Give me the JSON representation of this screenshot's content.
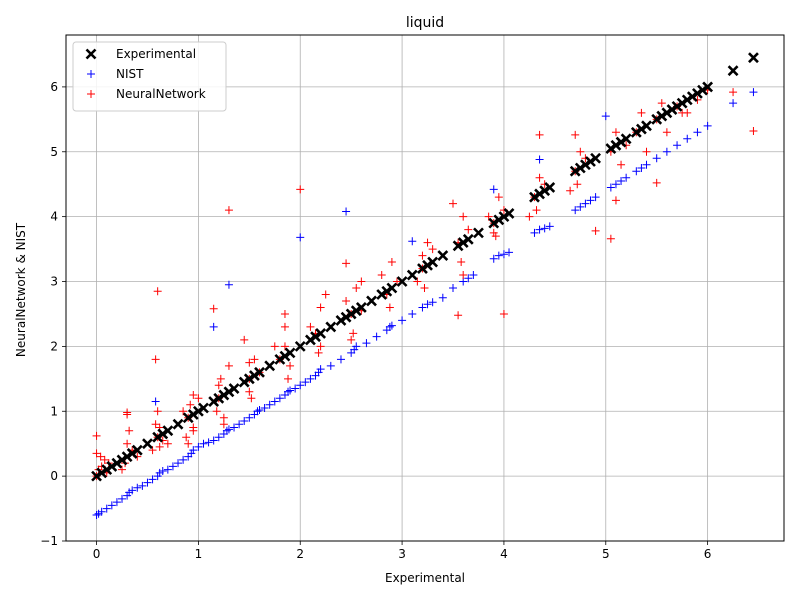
{
  "chart_data": {
    "type": "scatter",
    "title": "liquid",
    "xlabel": "Experimental",
    "ylabel": "NeuralNetwork & NIST",
    "xlim": [
      -0.3,
      6.75
    ],
    "ylim": [
      -1,
      6.8
    ],
    "xticks": [
      0,
      1,
      2,
      3,
      4,
      5,
      6
    ],
    "yticks": [
      -1,
      0,
      1,
      2,
      3,
      4,
      5,
      6
    ],
    "grid": true,
    "legend_position": "top-left",
    "series": [
      {
        "name": "Experimental",
        "marker": "x",
        "color": "#000000",
        "x": [
          0.0,
          0.05,
          0.1,
          0.15,
          0.2,
          0.25,
          0.3,
          0.35,
          0.4,
          0.5,
          0.6,
          0.65,
          0.7,
          0.8,
          0.9,
          0.95,
          1.0,
          1.05,
          1.15,
          1.2,
          1.25,
          1.3,
          1.35,
          1.45,
          1.5,
          1.55,
          1.6,
          1.7,
          1.8,
          1.85,
          1.9,
          2.0,
          2.1,
          2.15,
          2.2,
          2.3,
          2.4,
          2.45,
          2.5,
          2.55,
          2.6,
          2.7,
          2.8,
          2.85,
          2.9,
          3.0,
          3.1,
          3.2,
          3.25,
          3.3,
          3.4,
          3.55,
          3.6,
          3.65,
          3.75,
          3.9,
          3.95,
          4.0,
          4.05,
          4.3,
          4.35,
          4.4,
          4.45,
          4.7,
          4.75,
          4.8,
          4.85,
          4.9,
          5.05,
          5.1,
          5.15,
          5.2,
          5.3,
          5.35,
          5.4,
          5.5,
          5.55,
          5.6,
          5.65,
          5.7,
          5.75,
          5.8,
          5.85,
          5.9,
          5.95,
          6.0,
          6.25,
          6.45
        ],
        "y": [
          0.0,
          0.05,
          0.1,
          0.15,
          0.2,
          0.25,
          0.3,
          0.35,
          0.4,
          0.5,
          0.6,
          0.65,
          0.7,
          0.8,
          0.9,
          0.95,
          1.0,
          1.05,
          1.15,
          1.2,
          1.25,
          1.3,
          1.35,
          1.45,
          1.5,
          1.55,
          1.6,
          1.7,
          1.8,
          1.85,
          1.9,
          2.0,
          2.1,
          2.15,
          2.2,
          2.3,
          2.4,
          2.45,
          2.5,
          2.55,
          2.6,
          2.7,
          2.8,
          2.85,
          2.9,
          3.0,
          3.1,
          3.2,
          3.25,
          3.3,
          3.4,
          3.55,
          3.6,
          3.65,
          3.75,
          3.9,
          3.95,
          4.0,
          4.05,
          4.3,
          4.35,
          4.4,
          4.45,
          4.7,
          4.75,
          4.8,
          4.85,
          4.9,
          5.05,
          5.1,
          5.15,
          5.2,
          5.3,
          5.35,
          5.4,
          5.5,
          5.55,
          5.6,
          5.65,
          5.7,
          5.75,
          5.8,
          5.85,
          5.9,
          5.95,
          6.0,
          6.25,
          6.45
        ]
      },
      {
        "name": "NIST",
        "marker": "+",
        "color": "#0000ff",
        "x": [
          0.0,
          0.02,
          0.05,
          0.1,
          0.15,
          0.2,
          0.25,
          0.3,
          0.32,
          0.35,
          0.4,
          0.45,
          0.5,
          0.55,
          0.6,
          0.62,
          0.65,
          0.7,
          0.75,
          0.8,
          0.85,
          0.9,
          0.93,
          0.95,
          1.0,
          1.05,
          1.1,
          1.15,
          1.2,
          1.25,
          1.28,
          1.3,
          1.35,
          1.4,
          1.45,
          1.5,
          1.55,
          1.58,
          1.6,
          1.65,
          1.7,
          1.75,
          1.8,
          1.85,
          1.88,
          1.9,
          1.95,
          2.0,
          2.05,
          2.1,
          2.15,
          2.18,
          2.2,
          2.3,
          2.4,
          2.5,
          2.53,
          2.55,
          2.65,
          2.75,
          2.85,
          2.88,
          2.9,
          3.0,
          3.1,
          3.2,
          3.25,
          3.3,
          3.4,
          3.5,
          3.6,
          3.65,
          3.7,
          3.9,
          3.95,
          4.0,
          4.05,
          4.3,
          4.35,
          4.4,
          4.45,
          4.7,
          4.75,
          4.8,
          4.85,
          4.9,
          5.05,
          5.1,
          5.15,
          5.2,
          5.3,
          5.35,
          5.4,
          5.5,
          5.6,
          5.7,
          5.8,
          5.9,
          6.0,
          6.25,
          6.45,
          0.58,
          1.3,
          2.0,
          2.45,
          1.15,
          3.1,
          3.9,
          4.35,
          5.0
        ],
        "y": [
          -0.6,
          -0.58,
          -0.55,
          -0.5,
          -0.45,
          -0.4,
          -0.35,
          -0.3,
          -0.25,
          -0.22,
          -0.18,
          -0.15,
          -0.1,
          -0.05,
          0.0,
          0.05,
          0.08,
          0.1,
          0.15,
          0.2,
          0.25,
          0.3,
          0.35,
          0.4,
          0.45,
          0.5,
          0.52,
          0.55,
          0.6,
          0.65,
          0.7,
          0.72,
          0.75,
          0.8,
          0.85,
          0.9,
          0.95,
          1.0,
          1.02,
          1.05,
          1.1,
          1.15,
          1.2,
          1.25,
          1.3,
          1.32,
          1.35,
          1.4,
          1.45,
          1.5,
          1.55,
          1.6,
          1.65,
          1.7,
          1.8,
          1.9,
          1.95,
          2.0,
          2.05,
          2.15,
          2.25,
          2.3,
          2.32,
          2.4,
          2.5,
          2.6,
          2.65,
          2.68,
          2.75,
          2.9,
          3.0,
          3.05,
          3.1,
          3.35,
          3.4,
          3.42,
          3.45,
          3.75,
          3.8,
          3.82,
          3.85,
          4.1,
          4.15,
          4.2,
          4.25,
          4.3,
          4.45,
          4.5,
          4.55,
          4.6,
          4.7,
          4.75,
          4.8,
          4.9,
          5.0,
          5.1,
          5.2,
          5.3,
          5.4,
          5.75,
          5.92,
          1.15,
          2.95,
          3.68,
          4.08,
          2.3,
          3.62,
          4.42,
          4.88,
          5.55
        ]
      },
      {
        "name": "NeuralNetwork",
        "marker": "+",
        "color": "#ff0000",
        "x": [
          0.0,
          0.02,
          0.05,
          0.1,
          0.0,
          0.04,
          0.08,
          0.12,
          0.3,
          0.32,
          0.35,
          0.28,
          0.25,
          0.4,
          0.3,
          0.6,
          0.62,
          0.65,
          0.55,
          0.58,
          0.7,
          0.6,
          0.62,
          0.9,
          0.92,
          0.95,
          0.88,
          0.85,
          1.0,
          0.9,
          0.95,
          1.2,
          1.22,
          1.25,
          1.18,
          1.3,
          1.2,
          1.25,
          1.5,
          1.55,
          1.52,
          1.6,
          1.45,
          1.5,
          1.8,
          1.85,
          1.88,
          1.75,
          1.9,
          1.85,
          2.15,
          2.2,
          2.18,
          2.25,
          2.1,
          2.2,
          2.5,
          2.55,
          2.52,
          2.45,
          2.6,
          2.5,
          2.85,
          2.9,
          2.88,
          2.8,
          2.95,
          3.2,
          3.25,
          3.22,
          3.3,
          3.15,
          3.55,
          3.6,
          3.58,
          3.65,
          3.5,
          3.9,
          3.95,
          3.92,
          4.0,
          3.85,
          4.3,
          4.35,
          4.32,
          4.4,
          4.25,
          4.7,
          4.75,
          4.72,
          4.8,
          4.65,
          5.05,
          5.1,
          5.15,
          5.2,
          5.3,
          5.35,
          5.4,
          5.5,
          5.55,
          5.6,
          5.7,
          5.8,
          5.9,
          6.0,
          6.25,
          6.45,
          0.6,
          0.58,
          1.3,
          1.15,
          2.0,
          2.45,
          3.55,
          4.0,
          4.35,
          4.7,
          5.05,
          5.1,
          5.5,
          0.3,
          0.0,
          1.85,
          3.9,
          4.9,
          5.75,
          0.95,
          1.5,
          2.6,
          3.2,
          3.6
        ],
        "y": [
          0.0,
          0.1,
          0.15,
          0.05,
          0.35,
          0.3,
          0.25,
          0.2,
          0.5,
          0.7,
          0.4,
          0.2,
          0.1,
          0.3,
          0.95,
          0.6,
          0.75,
          0.55,
          0.4,
          0.8,
          0.5,
          1.0,
          0.45,
          0.9,
          1.1,
          0.7,
          0.6,
          1.0,
          1.2,
          0.5,
          0.75,
          1.2,
          1.5,
          0.8,
          1.0,
          1.7,
          1.4,
          0.9,
          1.5,
          1.8,
          1.2,
          1.6,
          2.1,
          1.3,
          1.8,
          2.3,
          1.5,
          2.0,
          1.7,
          2.5,
          2.2,
          2.6,
          1.9,
          2.8,
          2.3,
          2.0,
          2.5,
          2.9,
          2.2,
          2.7,
          3.0,
          2.1,
          2.8,
          3.3,
          2.6,
          3.1,
          3.0,
          3.2,
          3.6,
          2.9,
          3.5,
          3.0,
          3.6,
          4.0,
          3.3,
          3.8,
          4.2,
          3.9,
          4.3,
          3.7,
          4.1,
          4.0,
          4.3,
          4.6,
          4.1,
          4.5,
          4.0,
          4.7,
          5.0,
          4.5,
          4.9,
          4.4,
          5.0,
          5.3,
          4.8,
          5.1,
          5.3,
          5.6,
          5.0,
          5.5,
          5.75,
          5.3,
          5.7,
          5.6,
          5.8,
          5.95,
          5.92,
          5.32,
          2.85,
          1.8,
          4.1,
          2.58,
          4.42,
          3.28,
          2.48,
          2.5,
          5.26,
          5.26,
          3.66,
          4.25,
          4.52,
          0.98,
          0.62,
          2.0,
          3.75,
          3.78,
          5.6,
          1.25,
          1.75,
          2.55,
          3.4,
          3.1
        ]
      }
    ]
  }
}
